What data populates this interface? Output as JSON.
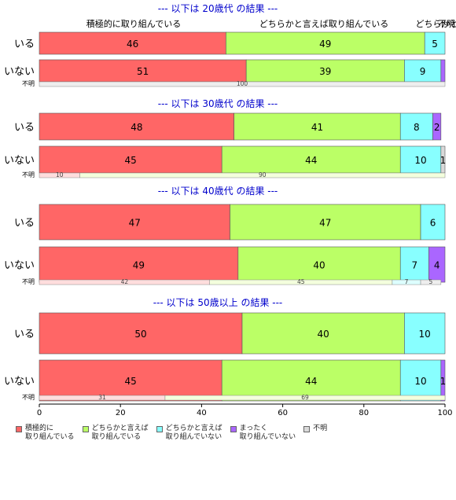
{
  "chart_data": {
    "type": "bar",
    "orientation": "horizontal",
    "stacked": true,
    "percent": true,
    "top_header_labels": [
      "積極的に取り組んでいる",
      "どちらかと言えば取り組んでいる",
      "どちらかと",
      "不明"
    ],
    "xaxis": {
      "ticks": [
        "0",
        "20",
        "40",
        "60",
        "80",
        "100"
      ],
      "xlim": [
        0,
        100
      ]
    },
    "colors": [
      "#ff6666",
      "#bbff66",
      "#88ffff",
      "#aa66ff",
      "#d9d9d9"
    ],
    "legend": [
      {
        "label": "積極的に\n取り組んでいる",
        "color": "#ff6666"
      },
      {
        "label": "どちらかと言えば\n取り組んでいる",
        "color": "#bbff66"
      },
      {
        "label": "どちらかと言えば\n取り組んでいない",
        "color": "#88ffff"
      },
      {
        "label": "まったく\n取り組んでいない",
        "color": "#aa66ff"
      },
      {
        "label": "不明",
        "color": "#d9d9d9"
      }
    ],
    "panels": [
      {
        "title": "--- 以下は 20歳代 の結果 ---",
        "rows": [
          {
            "label": "いる",
            "values": [
              46,
              49,
              5,
              0,
              0
            ],
            "display": [
              "46",
              "49",
              "5",
              "",
              ""
            ]
          },
          {
            "label": "いない",
            "values": [
              51,
              39,
              9,
              1,
              0
            ],
            "display": [
              "51",
              "39",
              "9",
              "",
              ""
            ]
          }
        ],
        "missing": {
          "label": "不明",
          "values": [
            0,
            0,
            0,
            0,
            100
          ],
          "display": [
            "",
            "",
            "",
            "",
            "100"
          ]
        }
      },
      {
        "title": "--- 以下は 30歳代 の結果 ---",
        "rows": [
          {
            "label": "いる",
            "values": [
              48,
              41,
              8,
              2,
              0
            ],
            "display": [
              "48",
              "41",
              "8",
              "2",
              ""
            ]
          },
          {
            "label": "いない",
            "values": [
              45,
              44,
              10,
              0,
              1
            ],
            "display": [
              "45",
              "44",
              "10",
              "",
              "1"
            ]
          }
        ],
        "missing": {
          "label": "不明",
          "values": [
            10,
            90,
            0,
            0,
            0
          ],
          "display": [
            "10",
            "90",
            "",
            "",
            ""
          ]
        }
      },
      {
        "title": "--- 以下は 40歳代 の結果 ---",
        "rows": [
          {
            "label": "いる",
            "values": [
              47,
              47,
              6,
              0,
              0
            ],
            "display": [
              "47",
              "47",
              "6",
              "",
              ""
            ]
          },
          {
            "label": "いない",
            "values": [
              49,
              40,
              7,
              4,
              0
            ],
            "display": [
              "49",
              "40",
              "7",
              "4",
              ""
            ]
          }
        ],
        "missing": {
          "label": "不明",
          "values": [
            42,
            45,
            7,
            0,
            5
          ],
          "display": [
            "42",
            "45",
            "7",
            "",
            "5"
          ]
        }
      },
      {
        "title": "--- 以下は 50歳以上 の結果 ---",
        "rows": [
          {
            "label": "いる",
            "values": [
              50,
              40,
              10,
              0,
              0
            ],
            "display": [
              "50",
              "40",
              "10",
              "",
              ""
            ]
          },
          {
            "label": "いない",
            "values": [
              45,
              44,
              10,
              1,
              0
            ],
            "display": [
              "45",
              "44",
              "10",
              "1",
              ""
            ]
          }
        ],
        "missing": {
          "label": "不明",
          "values": [
            31,
            69,
            0,
            0,
            0
          ],
          "display": [
            "31",
            "69",
            "",
            "",
            ""
          ]
        }
      }
    ]
  }
}
